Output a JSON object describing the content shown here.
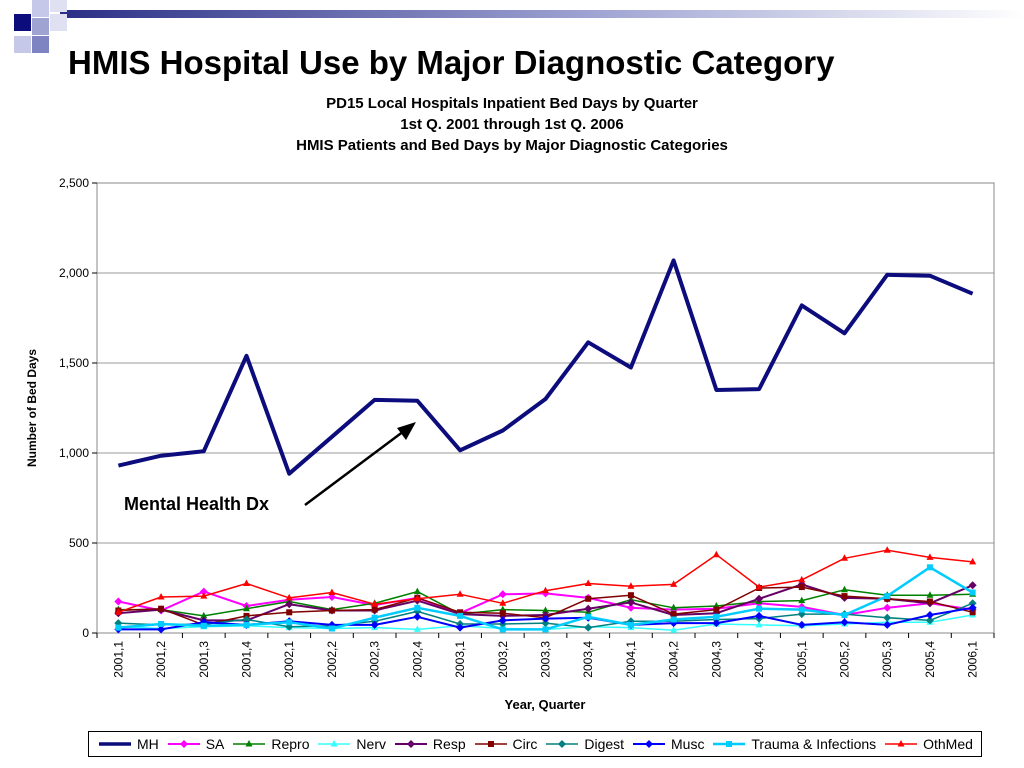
{
  "page_title": "HMIS Hospital Use by Major Diagnostic Category",
  "chart_data": {
    "type": "line",
    "title_lines": [
      "PD15 Local Hospitals Inpatient Bed Days by Quarter",
      "1st Q. 2001 through 1st Q. 2006",
      "HMIS Patients and Bed Days by Major Diagnostic Categories"
    ],
    "xlabel": "Year, Quarter",
    "ylabel": "Number of Bed Days",
    "ylim": [
      0,
      2500
    ],
    "yticks": [
      0,
      500,
      1000,
      1500,
      2000,
      2500
    ],
    "ytick_labels": [
      "0",
      "500",
      "1,000",
      "1,500",
      "2,000",
      "2,500"
    ],
    "grid": "horizontal",
    "legend_position": "bottom",
    "categories": [
      "2001,1",
      "2001,2",
      "2001,3",
      "2001,4",
      "2002,1",
      "2002,2",
      "2002,3",
      "2002,4",
      "2003,1",
      "2003,2",
      "2003,3",
      "2003,4",
      "2004,1",
      "2004,2",
      "2004,3",
      "2004,4",
      "2005,1",
      "2005,2",
      "2005,3",
      "2005,4",
      "2006,1"
    ],
    "series": [
      {
        "name": "MH",
        "color": "#0c0c7c",
        "marker": "none",
        "width": 4,
        "values": [
          930,
          985,
          1010,
          1540,
          885,
          1090,
          1295,
          1290,
          1015,
          1125,
          1300,
          1615,
          1475,
          2070,
          1350,
          1355,
          1820,
          1665,
          1990,
          1985,
          1885
        ]
      },
      {
        "name": "SA",
        "color": "#ff00ff",
        "marker": "diamond",
        "width": 2,
        "values": [
          175,
          125,
          230,
          150,
          185,
          200,
          155,
          195,
          110,
          215,
          220,
          195,
          140,
          130,
          135,
          165,
          145,
          100,
          140,
          165,
          130
        ]
      },
      {
        "name": "Repro",
        "color": "#008000",
        "marker": "triangle",
        "width": 1.5,
        "values": [
          130,
          130,
          95,
          135,
          175,
          130,
          165,
          230,
          105,
          130,
          125,
          115,
          185,
          140,
          150,
          175,
          180,
          240,
          210,
          210,
          215
        ]
      },
      {
        "name": "Nerv",
        "color": "#33ffff",
        "marker": "triangle",
        "width": 1.5,
        "values": [
          35,
          25,
          35,
          40,
          30,
          25,
          30,
          20,
          40,
          25,
          20,
          35,
          30,
          15,
          50,
          45,
          40,
          50,
          60,
          60,
          100
        ]
      },
      {
        "name": "Resp",
        "color": "#660066",
        "marker": "diamond",
        "width": 2,
        "values": [
          110,
          130,
          70,
          70,
          160,
          125,
          125,
          180,
          105,
          95,
          100,
          135,
          170,
          100,
          110,
          190,
          270,
          195,
          190,
          165,
          265
        ]
      },
      {
        "name": "Circ",
        "color": "#800000",
        "marker": "square",
        "width": 1.5,
        "values": [
          125,
          135,
          45,
          95,
          115,
          125,
          130,
          195,
          115,
          110,
          85,
          190,
          210,
          105,
          130,
          250,
          255,
          205,
          190,
          175,
          115
        ]
      },
      {
        "name": "Digest",
        "color": "#008080",
        "marker": "diamond",
        "width": 1.5,
        "values": [
          55,
          45,
          50,
          75,
          35,
          40,
          65,
          120,
          50,
          50,
          55,
          30,
          65,
          65,
          75,
          80,
          105,
          105,
          85,
          70,
          165
        ]
      },
      {
        "name": "Musc",
        "color": "#0000ff",
        "marker": "diamond",
        "width": 2,
        "values": [
          20,
          20,
          60,
          45,
          65,
          45,
          45,
          90,
          30,
          70,
          80,
          85,
          45,
          55,
          55,
          95,
          45,
          60,
          45,
          100,
          140
        ]
      },
      {
        "name": "Trauma & Infections",
        "color": "#00ccff",
        "marker": "square",
        "width": 2.5,
        "values": [
          30,
          50,
          40,
          45,
          60,
          25,
          85,
          140,
          95,
          20,
          20,
          90,
          45,
          75,
          90,
          135,
          130,
          100,
          205,
          365,
          225
        ]
      },
      {
        "name": "OthMed",
        "color": "#ff0000",
        "marker": "triangle",
        "width": 1.5,
        "values": [
          115,
          200,
          205,
          275,
          195,
          225,
          160,
          190,
          215,
          165,
          235,
          275,
          260,
          270,
          435,
          255,
          295,
          415,
          460,
          420,
          395
        ]
      }
    ],
    "annotation": {
      "text": "Mental Health Dx",
      "points_to": "MH"
    }
  }
}
